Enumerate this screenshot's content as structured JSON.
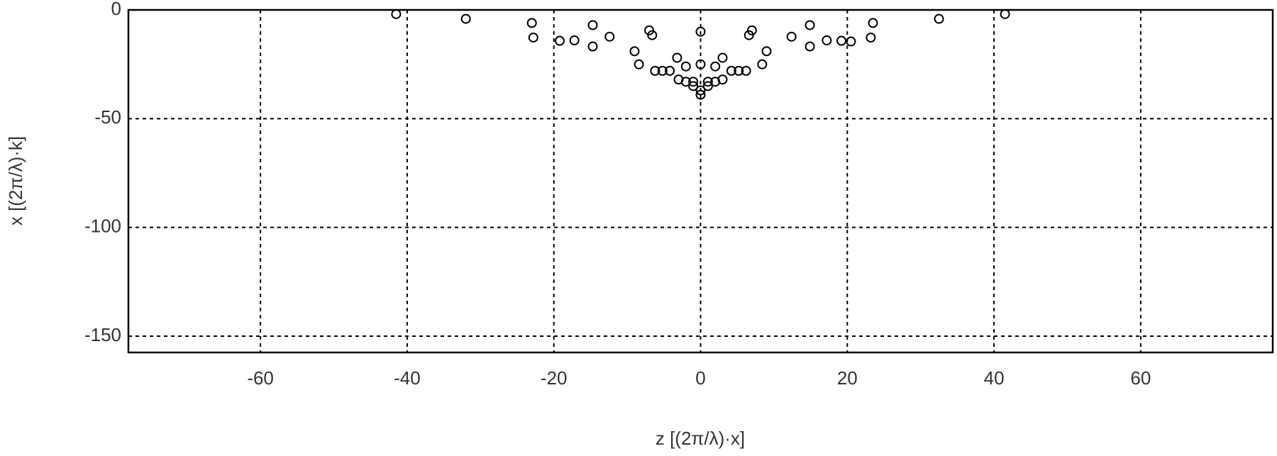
{
  "chart_data": {
    "type": "scatter",
    "x_label": "z  [(2π/λ)·x]",
    "y_label": "x  [(2π/λ)·k]",
    "x": [
      -41.5,
      -32,
      -23,
      -22.8,
      -19.2,
      -17.2,
      -14.7,
      -14.7,
      -12.4,
      -9,
      -8.4,
      -7,
      -6.6,
      -6.2,
      -5.2,
      -4.2,
      -3.2,
      -3,
      -2,
      -2,
      -1,
      -1,
      0,
      0,
      0,
      0,
      1,
      1,
      2,
      2,
      3,
      3,
      4.2,
      5.2,
      6.2,
      6.6,
      7,
      8.4,
      9,
      12.4,
      14.9,
      14.9,
      17.2,
      19.2,
      20.5,
      23.5,
      23.2,
      32.5,
      41.5
    ],
    "values": [
      -1.9,
      -4.1,
      -6,
      -12.7,
      -14.2,
      -14,
      -7,
      -16.8,
      -12.3,
      -19,
      -25,
      -9.4,
      -11.6,
      -28,
      -28,
      -28,
      -22,
      -32,
      -26,
      -33,
      -33,
      -35,
      -10,
      -25,
      -37,
      -39,
      -35,
      -33,
      -33,
      -26,
      -32,
      -22,
      -28,
      -28,
      -28,
      -11.6,
      -9.4,
      -25,
      -19,
      -12.3,
      -7,
      -16.8,
      -14,
      -14.2,
      -14.5,
      -6,
      -12.7,
      -4.1,
      -1.9
    ],
    "color": "#000000",
    "xlim": [
      -78,
      78
    ],
    "ylim": [
      -157.5,
      0
    ],
    "xticks": [
      -60,
      -40,
      -20,
      0,
      20,
      40,
      60
    ],
    "yticks": [
      0,
      -50,
      -100,
      -150
    ],
    "grid": true
  }
}
